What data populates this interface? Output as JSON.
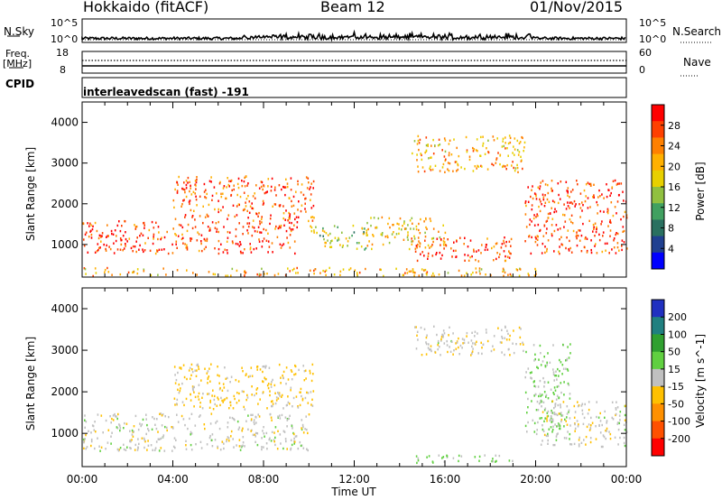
{
  "header": {
    "station": "Hokkaido (fitACF)",
    "beam": "Beam 12",
    "date": "01/Nov/2015"
  },
  "summary": {
    "nsky_label": "N.Sky",
    "nsky_top": "10^5",
    "nsky_bottom": "10^0",
    "nsearch_label": "N.Search",
    "nsearch_top": "10^5",
    "nsearch_bottom": "10^0",
    "freq_label": "Freq.",
    "freq_unit": "[MHz]",
    "freq_top": "18",
    "freq_bottom": "8",
    "nave_label": "Nave",
    "nave_top": "60",
    "nave_bottom": "0",
    "cpid_label": "CPID",
    "cpid_value": "interleavedscan (fast) -191"
  },
  "axes": {
    "ylabel": "Slant Range [km]",
    "xlabel": "Time UT",
    "yticks": [
      "4000",
      "3000",
      "2000",
      "1000"
    ],
    "xticks": [
      "00:00",
      "04:00",
      "08:00",
      "12:00",
      "16:00",
      "20:00",
      "00:00"
    ]
  },
  "colorbars": {
    "power": {
      "label": "Power [dB]",
      "ticks": [
        "28",
        "24",
        "20",
        "16",
        "12",
        "8",
        "4"
      ],
      "colors": [
        "#ff0000",
        "#ff4000",
        "#ff8000",
        "#ffb000",
        "#e8d000",
        "#90c040",
        "#40a060",
        "#2a7060",
        "#204090",
        "#0000ff"
      ]
    },
    "velocity": {
      "label": "Velocity [m s^-1]",
      "ticks": [
        "200",
        "100",
        "50",
        "15",
        "-15",
        "-50",
        "-100",
        "-200"
      ],
      "colors": [
        "#2030c0",
        "#208080",
        "#30a030",
        "#60d040",
        "#c0c0c0",
        "#ffc000",
        "#ff9000",
        "#ff5000",
        "#ff0000"
      ]
    }
  },
  "chart_data": {
    "type": "heatmap",
    "title": "Hokkaido (fitACF) Beam 12 01/Nov/2015",
    "xlabel": "Time UT",
    "ylabel": "Slant Range [km]",
    "xlim": [
      "00:00",
      "24:00"
    ],
    "ylim": [
      200,
      4500
    ],
    "panels": [
      {
        "name": "Power [dB]",
        "clim": [
          0,
          30
        ],
        "features": [
          {
            "time": [
              0,
              9.5
            ],
            "range": [
              800,
              1600
            ],
            "value": 26
          },
          {
            "time": [
              4,
              10.2
            ],
            "range": [
              1600,
              2700
            ],
            "value": 24
          },
          {
            "time": [
              10,
              12.5
            ],
            "range": [
              900,
              1500
            ],
            "value": 14
          },
          {
            "time": [
              12.5,
              16
            ],
            "range": [
              900,
              1700
            ],
            "value": 18
          },
          {
            "time": [
              14.5,
              19.5
            ],
            "range": [
              2800,
              3700
            ],
            "value": 20
          },
          {
            "time": [
              14.5,
              19
            ],
            "range": [
              600,
              1200
            ],
            "value": 26
          },
          {
            "time": [
              19.5,
              24
            ],
            "range": [
              800,
              2600
            ],
            "value": 26
          },
          {
            "time": [
              0,
              20
            ],
            "range": [
              250,
              450
            ],
            "value": 20
          }
        ]
      },
      {
        "name": "Velocity [m s^-1]",
        "clim": [
          -250,
          250
        ],
        "features": [
          {
            "time": [
              0,
              10
            ],
            "range": [
              600,
              1500
            ],
            "value": -5
          },
          {
            "time": [
              4,
              10.2
            ],
            "range": [
              1600,
              2700
            ],
            "value": -40
          },
          {
            "time": [
              14.5,
              19.5
            ],
            "range": [
              2900,
              3600
            ],
            "value": -10
          },
          {
            "time": [
              19.5,
              21.5
            ],
            "range": [
              1000,
              3200
            ],
            "value": 30
          },
          {
            "time": [
              14.5,
              19
            ],
            "range": [
              300,
              500
            ],
            "value": 40
          },
          {
            "time": [
              20,
              24
            ],
            "range": [
              700,
              1800
            ],
            "value": -5
          }
        ]
      }
    ]
  }
}
